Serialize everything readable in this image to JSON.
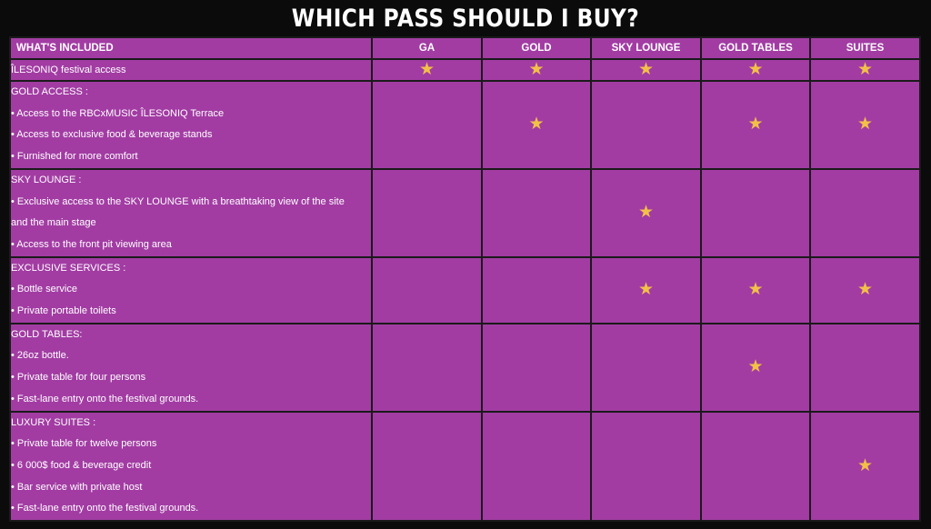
{
  "title": "WHICH PASS SHOULD I BUY?",
  "header": [
    "WHAT'S INCLUDED",
    "GA",
    "GOLD",
    "SKY LOUNGE",
    "GOLD TABLES",
    "SUITES"
  ],
  "rows": [
    {
      "lines": [
        "ÎLESONIQ festival access"
      ],
      "stars": [
        true,
        true,
        true,
        true,
        true
      ]
    },
    {
      "lines": [
        "GOLD ACCESS :",
        "• Access to the RBCxMUSIC ÎLESONIQ Terrace",
        "• Access to exclusive food & beverage stands",
        "• Furnished for more comfort"
      ],
      "stars": [
        false,
        true,
        false,
        true,
        true
      ]
    },
    {
      "lines": [
        "SKY LOUNGE :",
        "• Exclusive access to the SKY LOUNGE with a breathtaking view of the site",
        "and the main stage",
        "• Access to the front pit viewing area"
      ],
      "stars": [
        false,
        false,
        true,
        false,
        false
      ]
    },
    {
      "lines": [
        "EXCLUSIVE SERVICES :",
        "• Bottle service",
        "• Private portable toilets"
      ],
      "stars": [
        false,
        false,
        true,
        true,
        true
      ]
    },
    {
      "lines": [
        "GOLD TABLES:",
        "• 26oz bottle.",
        "• Private table for four persons",
        "• Fast-lane entry onto the festival grounds."
      ],
      "stars": [
        false,
        false,
        false,
        true,
        false
      ]
    },
    {
      "lines": [
        "LUXURY SUITES :",
        "• Private table for twelve persons",
        "• 6 000$ food & beverage credit",
        "• Bar service with private host",
        "• Fast-lane entry onto the festival grounds."
      ],
      "stars": [
        false,
        false,
        false,
        false,
        true
      ]
    }
  ],
  "star_glyph": "★",
  "star_icon": "star-icon",
  "colors": {
    "cell": "#a23ca3",
    "star": "#f2c147",
    "background": "#0b0b0b"
  }
}
